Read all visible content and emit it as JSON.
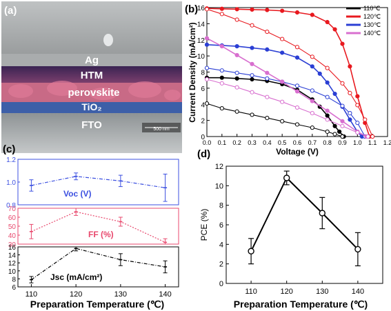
{
  "panel_a": {
    "label": "(a)",
    "layers": [
      "Ag",
      "HTM",
      "perovskite",
      "TiO₂",
      "FTO"
    ],
    "scale_bar": "500 nm"
  },
  "panel_b": {
    "label": "(b)",
    "legend": [
      "110℃",
      "120℃",
      "130℃",
      "140℃"
    ]
  },
  "panel_c": {
    "label": "(c)",
    "rows": [
      {
        "name": "Voc (V)"
      },
      {
        "name": "FF (%)"
      },
      {
        "name": "Jsc (mA/cm²)"
      }
    ]
  },
  "panel_d": {
    "label": "(d)"
  },
  "colors": {
    "c110": "#000000",
    "c120": "#e8191f",
    "c130": "#2b3fd4",
    "c140": "#d86fcf",
    "voc": "#3b4fe0",
    "ff": "#e8476c",
    "jsc": "#000000"
  },
  "chart_data": [
    {
      "type": "line",
      "panel": "b",
      "xlabel": "Voltage (V)",
      "ylabel": "Current Density (mA/cm²)",
      "xlim": [
        0.0,
        1.2
      ],
      "ylim": [
        0,
        16
      ],
      "xticks": [
        "0.0",
        "0.1",
        "0.2",
        "0.3",
        "0.4",
        "0.5",
        "0.6",
        "0.7",
        "0.8",
        "0.9",
        "1.0",
        "1.1",
        "1.2"
      ],
      "yticks": [
        "0",
        "2",
        "4",
        "6",
        "8",
        "10",
        "12",
        "14",
        "16"
      ],
      "grid": false,
      "legend_position": "top-right",
      "series": [
        {
          "name": "110℃",
          "curve": "filled",
          "x": [
            0.0,
            0.1,
            0.2,
            0.3,
            0.4,
            0.5,
            0.6,
            0.7,
            0.75,
            0.8,
            0.85,
            0.88,
            0.91
          ],
          "y": [
            7.3,
            7.3,
            7.2,
            7.1,
            6.9,
            6.5,
            5.8,
            4.6,
            3.7,
            2.6,
            1.3,
            0.6,
            0.0
          ]
        },
        {
          "name": "110℃",
          "curve": "open",
          "x": [
            0.0,
            0.1,
            0.2,
            0.3,
            0.4,
            0.5,
            0.6,
            0.7,
            0.8,
            0.85,
            0.9
          ],
          "y": [
            4.1,
            3.5,
            3.1,
            2.7,
            2.3,
            1.9,
            1.5,
            1.1,
            0.6,
            0.3,
            0.0
          ]
        },
        {
          "name": "120℃",
          "curve": "filled",
          "x": [
            0.0,
            0.1,
            0.2,
            0.3,
            0.4,
            0.5,
            0.6,
            0.7,
            0.8,
            0.85,
            0.9,
            0.95,
            1.0,
            1.05,
            1.08
          ],
          "y": [
            15.9,
            15.85,
            15.8,
            15.75,
            15.7,
            15.6,
            15.4,
            15.1,
            14.2,
            13.3,
            11.5,
            8.7,
            5.0,
            1.7,
            0.0
          ]
        },
        {
          "name": "120℃",
          "curve": "open",
          "x": [
            0.0,
            0.1,
            0.2,
            0.3,
            0.4,
            0.5,
            0.6,
            0.7,
            0.8,
            0.9,
            0.95,
            1.0,
            1.05,
            1.1
          ],
          "y": [
            15.8,
            15.2,
            14.5,
            13.8,
            13.0,
            12.1,
            11.1,
            9.9,
            8.5,
            6.6,
            5.4,
            3.9,
            2.1,
            0.0
          ]
        },
        {
          "name": "130℃",
          "curve": "filled",
          "x": [
            0.0,
            0.1,
            0.2,
            0.3,
            0.4,
            0.5,
            0.6,
            0.7,
            0.75,
            0.8,
            0.85,
            0.9,
            0.95,
            1.0,
            1.03
          ],
          "y": [
            11.4,
            11.3,
            11.2,
            11.0,
            10.8,
            10.4,
            9.8,
            8.7,
            7.8,
            6.7,
            5.3,
            3.7,
            2.1,
            0.6,
            0.0
          ]
        },
        {
          "name": "130℃",
          "curve": "open",
          "x": [
            0.0,
            0.1,
            0.2,
            0.3,
            0.4,
            0.5,
            0.6,
            0.7,
            0.8,
            0.9,
            0.95,
            1.0,
            1.05
          ],
          "y": [
            8.5,
            8.2,
            7.9,
            7.6,
            7.2,
            6.8,
            6.3,
            5.7,
            4.9,
            3.8,
            2.9,
            1.7,
            0.0
          ]
        },
        {
          "name": "140℃",
          "curve": "filled",
          "x": [
            0.0,
            0.1,
            0.2,
            0.3,
            0.4,
            0.5,
            0.6,
            0.7,
            0.8,
            0.9,
            1.0,
            1.06
          ],
          "y": [
            12.2,
            11.2,
            10.1,
            9.0,
            7.9,
            6.8,
            5.6,
            4.4,
            3.2,
            1.9,
            0.6,
            0.0
          ]
        },
        {
          "name": "140℃",
          "curve": "open",
          "x": [
            0.0,
            0.1,
            0.2,
            0.3,
            0.4,
            0.5,
            0.6,
            0.7,
            0.8,
            0.9,
            1.0,
            1.07
          ],
          "y": [
            7.1,
            6.6,
            6.1,
            5.5,
            4.9,
            4.3,
            3.6,
            2.9,
            2.1,
            1.3,
            0.5,
            0.0
          ]
        }
      ]
    },
    {
      "type": "line",
      "panel": "c",
      "xlabel": "Preparation Temperature (℃)",
      "x": [
        110,
        120,
        130,
        140
      ],
      "xlim": [
        107,
        143
      ],
      "xticks": [
        "110",
        "120",
        "130",
        "140"
      ],
      "subplots": [
        {
          "name": "Voc (V)",
          "values": [
            0.97,
            1.05,
            1.01,
            0.95
          ],
          "errors": [
            0.05,
            0.03,
            0.05,
            0.12
          ],
          "ylim": [
            0.8,
            1.2
          ],
          "yticks": [
            "0.8",
            "1.0",
            "1.2"
          ]
        },
        {
          "name": "FF (%)",
          "values": [
            44,
            66,
            55,
            32
          ],
          "errors": [
            8,
            4,
            5,
            4
          ],
          "ylim": [
            30,
            70
          ],
          "yticks": [
            "30",
            "40",
            "50",
            "60",
            "70"
          ]
        },
        {
          "name": "Jsc (mA/cm²)",
          "values": [
            7.8,
            15.6,
            12.8,
            11.0
          ],
          "errors": [
            0.8,
            0.6,
            1.5,
            1.5
          ],
          "ylim": [
            6,
            16
          ],
          "yticks": [
            "6",
            "8",
            "10",
            "12",
            "14",
            "16"
          ]
        }
      ]
    },
    {
      "type": "line",
      "panel": "d",
      "xlabel": "Preparation Temperature (℃)",
      "ylabel": "PCE (%)",
      "x": [
        110,
        120,
        130,
        140
      ],
      "values": [
        3.3,
        10.8,
        7.2,
        3.5
      ],
      "errors": [
        1.3,
        0.7,
        1.6,
        1.7
      ],
      "xlim": [
        103,
        147
      ],
      "ylim": [
        0,
        12
      ],
      "xticks": [
        "110",
        "120",
        "130",
        "140"
      ],
      "yticks": [
        "0",
        "2",
        "4",
        "6",
        "8",
        "10",
        "12"
      ]
    }
  ]
}
